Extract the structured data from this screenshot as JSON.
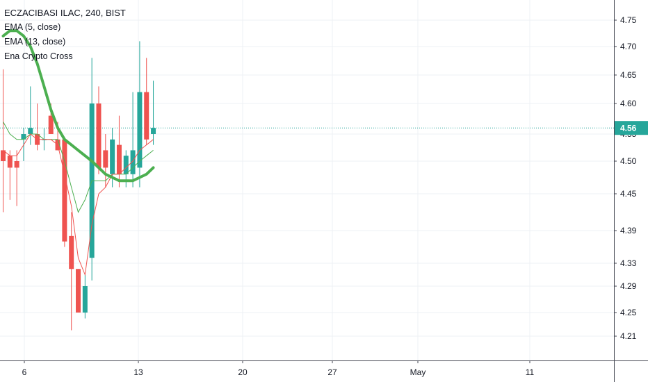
{
  "legend": {
    "title": "ECZACIBASI ILAC, 240, BIST",
    "indicators": [
      "EMA (5, close)",
      "EMA (13, close)",
      "Ena Crypto Cross"
    ]
  },
  "colors": {
    "up": "#26a69a",
    "down": "#ef5350",
    "ema5": "#ef5350",
    "ema13": "#4caf50",
    "cross": "#4caf50",
    "last_price": "#26a69a",
    "grid": "#eef0f4",
    "axis_line": "#434651"
  },
  "chart_data": {
    "type": "candlestick",
    "title": "ECZACIBASI ILAC, 240, BIST",
    "y_ticks": [
      4.21,
      4.25,
      4.29,
      4.33,
      4.39,
      4.45,
      4.5,
      4.55,
      4.6,
      4.65,
      4.7,
      4.75
    ],
    "y_tick_labels": [
      "4.21",
      "4.25",
      "4.29",
      "4.33",
      "4.39",
      "4.45",
      "4.50",
      "4.55",
      "4.60",
      "4.65",
      "4.70",
      "4.75"
    ],
    "x_tick_labels": [
      "6",
      "13",
      "20",
      "27",
      "May",
      "11"
    ],
    "x_tick_dates": [
      "2020-04-06",
      "2020-04-13",
      "2020-04-20",
      "2020-04-27",
      "2020-05-04",
      "2020-05-11"
    ],
    "last_price": 4.56,
    "last_price_label": "4.56",
    "grid": true,
    "candles": [
      {
        "o": 4.52,
        "h": 4.66,
        "l": 4.42,
        "c": 4.5
      },
      {
        "o": 4.51,
        "h": 4.52,
        "l": 4.44,
        "c": 4.49
      },
      {
        "o": 4.5,
        "h": 4.52,
        "l": 4.43,
        "c": 4.49
      },
      {
        "o": 4.54,
        "h": 4.56,
        "l": 4.5,
        "c": 4.55
      },
      {
        "o": 4.55,
        "h": 4.63,
        "l": 4.53,
        "c": 4.56
      },
      {
        "o": 4.55,
        "h": 4.6,
        "l": 4.52,
        "c": 4.53
      },
      {
        "o": 4.54,
        "h": 4.56,
        "l": 4.52,
        "c": 4.54
      },
      {
        "o": 4.58,
        "h": 4.6,
        "l": 4.55,
        "c": 4.55
      },
      {
        "o": 4.54,
        "h": 4.57,
        "l": 4.52,
        "c": 4.52
      },
      {
        "o": 4.54,
        "h": 4.54,
        "l": 4.36,
        "c": 4.37
      },
      {
        "o": 4.38,
        "h": 4.42,
        "l": 4.22,
        "c": 4.32
      },
      {
        "o": 4.32,
        "h": 4.32,
        "l": 4.25,
        "c": 4.25
      },
      {
        "o": 4.25,
        "h": 4.31,
        "l": 4.24,
        "c": 4.29
      },
      {
        "o": 4.34,
        "h": 4.68,
        "l": 4.3,
        "c": 4.6
      },
      {
        "o": 4.6,
        "h": 4.63,
        "l": 4.48,
        "c": 4.49
      },
      {
        "o": 4.52,
        "h": 4.55,
        "l": 4.46,
        "c": 4.49
      },
      {
        "o": 4.48,
        "h": 4.56,
        "l": 4.46,
        "c": 4.54
      },
      {
        "o": 4.53,
        "h": 4.58,
        "l": 4.46,
        "c": 4.48
      },
      {
        "o": 4.48,
        "h": 4.52,
        "l": 4.46,
        "c": 4.51
      },
      {
        "o": 4.48,
        "h": 4.62,
        "l": 4.46,
        "c": 4.52
      },
      {
        "o": 4.49,
        "h": 4.71,
        "l": 4.46,
        "c": 4.62
      },
      {
        "o": 4.62,
        "h": 4.68,
        "l": 4.53,
        "c": 4.54
      },
      {
        "o": 4.55,
        "h": 4.64,
        "l": 4.53,
        "c": 4.56
      }
    ],
    "ema5": [
      4.52,
      4.51,
      4.51,
      4.53,
      4.55,
      4.54,
      4.54,
      4.54,
      4.53,
      4.48,
      4.43,
      4.34,
      4.31,
      4.4,
      4.45,
      4.46,
      4.48,
      4.48,
      4.49,
      4.5,
      4.52,
      4.53,
      4.54
    ],
    "ema13": [
      4.57,
      4.55,
      4.54,
      4.54,
      4.55,
      4.55,
      4.54,
      4.54,
      4.54,
      4.5,
      4.46,
      4.42,
      4.44,
      4.47,
      4.47,
      4.47,
      4.48,
      4.48,
      4.48,
      4.49,
      4.5,
      4.51,
      4.52
    ],
    "cross": [
      4.72,
      4.73,
      4.73,
      4.72,
      4.7,
      4.67,
      4.63,
      4.59,
      4.56,
      4.54,
      4.53,
      4.52,
      4.51,
      4.5,
      4.49,
      4.48,
      4.475,
      4.47,
      4.47,
      4.47,
      4.475,
      4.48,
      4.49
    ]
  }
}
